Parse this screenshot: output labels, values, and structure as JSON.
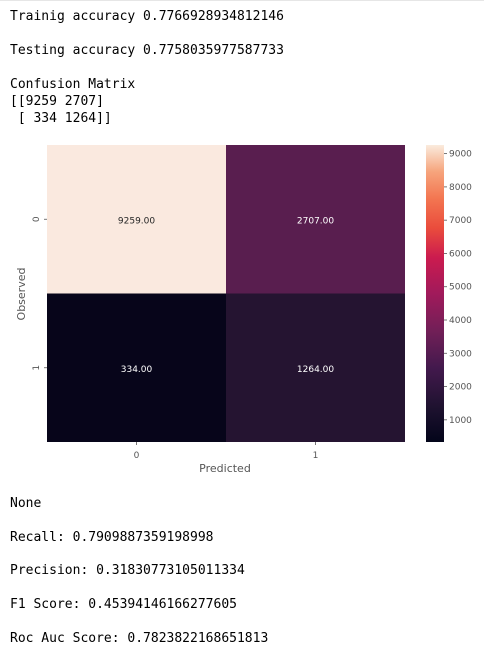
{
  "output": {
    "train_accuracy": "Trainig accuracy 0.7766928934812146",
    "test_accuracy": "Testing accuracy 0.7758035977587733",
    "cm_title": "Confusion Matrix",
    "cm_row1": "[[9259 2707]",
    "cm_row2": " [ 334 1264]]",
    "none_text": "None",
    "recall": "Recall: 0.7909887359198998",
    "precision": "Precision: 0.31830773105011334",
    "f1": "F1 Score: 0.45394146166277605",
    "roc_auc": "Roc Auc Score: 0.7823822168651813"
  },
  "chart_data": {
    "type": "heatmap",
    "xlabel": "Predicted",
    "ylabel": "Observed",
    "x_categories": [
      "0",
      "1"
    ],
    "y_categories": [
      "0",
      "1"
    ],
    "values": [
      [
        9259,
        2707
      ],
      [
        334,
        1264
      ]
    ],
    "annotations": [
      [
        "9259.00",
        "2707.00"
      ],
      [
        "334.00",
        "1264.00"
      ]
    ],
    "colormap": "rocket",
    "colorbar_range": [
      334,
      9259
    ],
    "colorbar_ticks": [
      1000,
      2000,
      3000,
      4000,
      5000,
      6000,
      7000,
      8000,
      9000
    ],
    "colors": {
      "cell_0_0": "#fae9df",
      "cell_0_1": "#591e4f",
      "cell_1_0": "#07051a",
      "cell_1_1": "#251431"
    }
  }
}
